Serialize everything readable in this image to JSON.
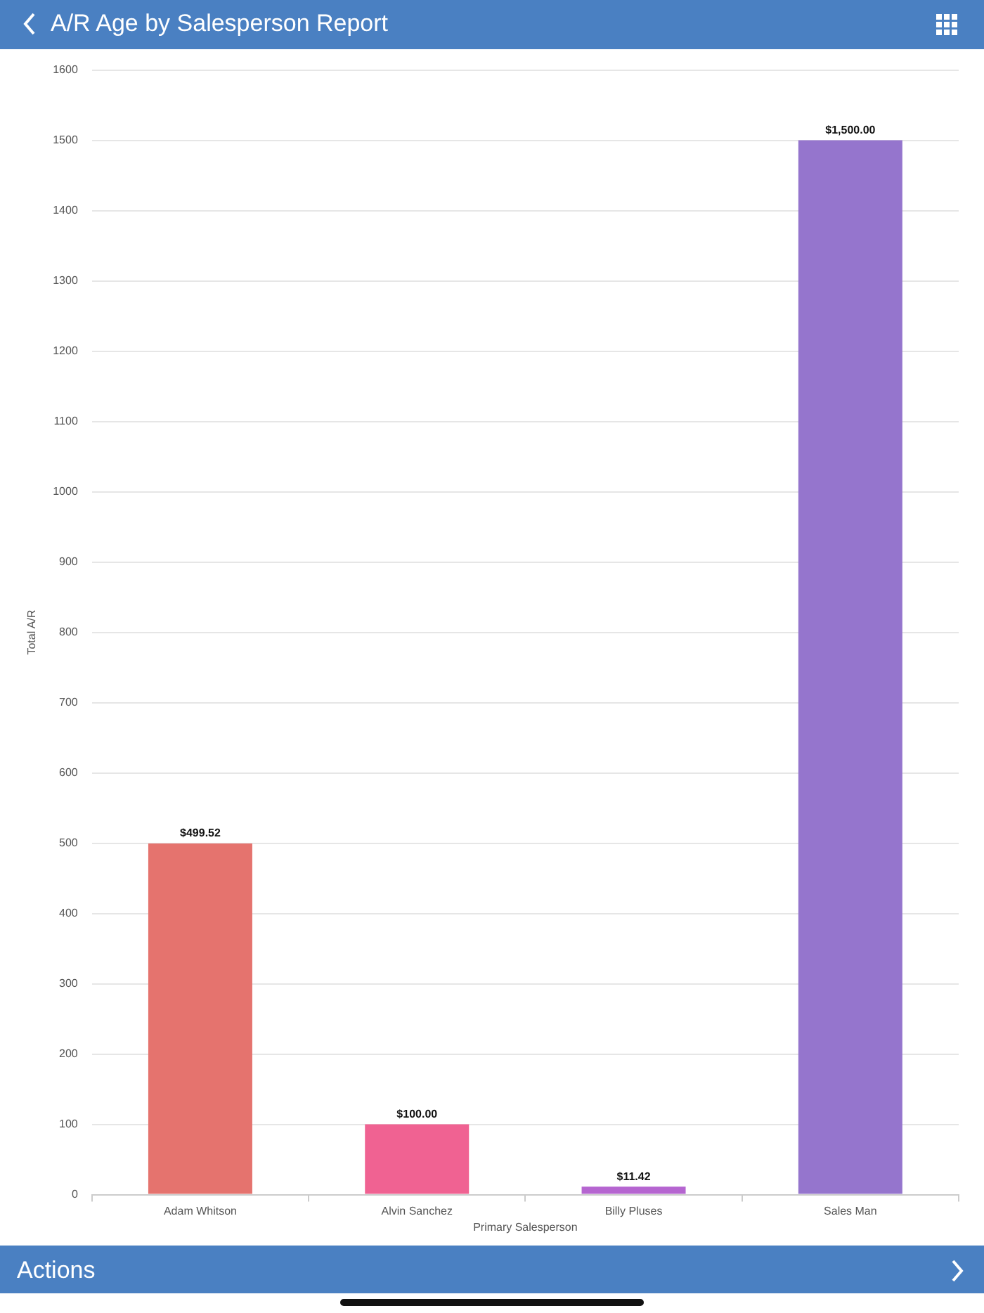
{
  "chart_data": {
    "type": "bar",
    "title": "A/R Age by Salesperson Report",
    "xlabel": "Primary Salesperson",
    "ylabel": "Total A/R",
    "categories": [
      "Adam Whitson",
      "Alvin Sanchez",
      "Billy Pluses",
      "Sales Man"
    ],
    "values": [
      499.52,
      100.0,
      11.42,
      1500.0
    ],
    "colors": [
      "#e5736e",
      "#f06292",
      "#b565d0",
      "#9575cd"
    ],
    "value_labels": [
      "$499.52",
      "$100.00",
      "$11.42",
      "$1,500.00"
    ],
    "ylim": [
      0,
      1600
    ],
    "yticks": [
      0,
      100,
      200,
      300,
      400,
      500,
      600,
      700,
      800,
      900,
      1000,
      1100,
      1200,
      1300,
      1400,
      1500,
      1600
    ],
    "grid": "y",
    "legend": false,
    "annotations": [
      "Actions"
    ]
  }
}
